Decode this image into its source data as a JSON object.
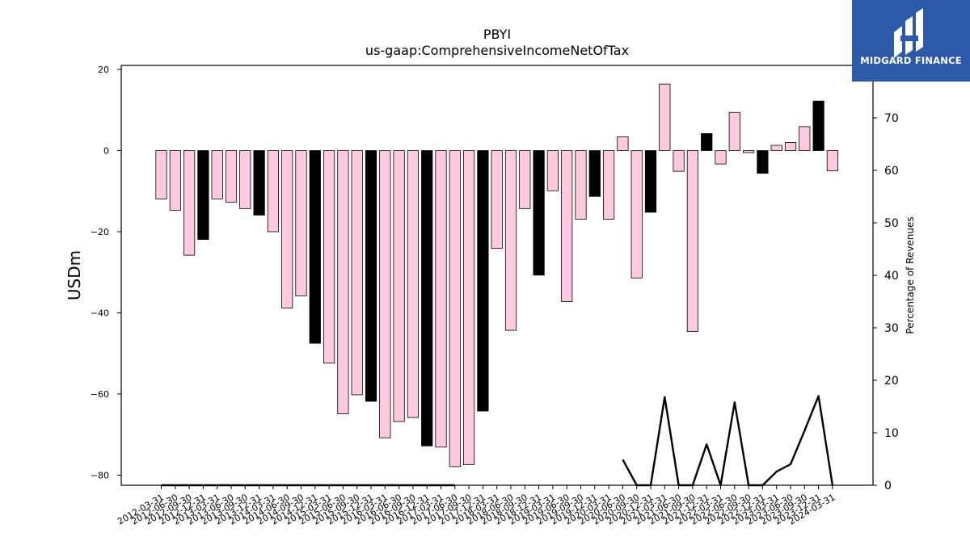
{
  "logo": {
    "text": "MIDGARD FINANCE",
    "background": "#2d5aa8"
  },
  "chart_data": {
    "type": "bar",
    "title": "PBYI",
    "subtitle": "us-gaap:ComprehensiveIncomeNetOfTax",
    "ylabel": "USDm",
    "ylabel_right": "Percentage of Revenues",
    "ylim": [
      -82.5,
      21
    ],
    "ylim_right": [
      0,
      80
    ],
    "yticks": [
      -80,
      -60,
      -40,
      -20,
      0,
      20
    ],
    "yticks_right": [
      0,
      10,
      20,
      30,
      40,
      50,
      60,
      70
    ],
    "grid": false,
    "colors": {
      "positive_quarter": "#ffc9e0",
      "annual": "#000000",
      "edge": "#000000"
    },
    "categories": [
      "2012-03-31",
      "2012-06-30",
      "2012-09-30",
      "2012-12-31",
      "2013-03-31",
      "2013-06-30",
      "2013-09-30",
      "2013-12-31",
      "2014-03-31",
      "2014-06-30",
      "2014-09-30",
      "2014-12-31",
      "2015-03-31",
      "2015-06-30",
      "2015-09-30",
      "2015-12-31",
      "2016-03-31",
      "2016-06-30",
      "2016-09-30",
      "2016-12-31",
      "2017-03-31",
      "2017-06-30",
      "2017-09-30",
      "2017-12-31",
      "2018-03-31",
      "2018-06-30",
      "2018-09-30",
      "2018-12-31",
      "2019-03-31",
      "2019-06-30",
      "2019-09-30",
      "2019-12-31",
      "2020-03-31",
      "2020-06-30",
      "2020-09-30",
      "2020-12-31",
      "2021-03-31",
      "2021-06-30",
      "2021-09-30",
      "2021-12-31",
      "2022-03-31",
      "2022-06-30",
      "2022-09-30",
      "2022-12-31",
      "2023-03-31",
      "2023-06-30",
      "2023-09-30",
      "2023-12-31",
      "2024-03-31"
    ],
    "series": [
      {
        "kind": "bar",
        "values": [
          -11.9,
          -14.7,
          -25.8,
          -21.9,
          -11.9,
          -12.7,
          -14.3,
          -15.9,
          -20.0,
          -38.8,
          -35.8,
          -47.5,
          -52.4,
          -64.9,
          -60.2,
          -61.8,
          -70.8,
          -66.8,
          -65.8,
          -72.8,
          -73.1,
          -77.9,
          -77.4,
          -64.2,
          -24.1,
          -44.3,
          -14.3,
          -30.7,
          -9.9,
          -37.2,
          -16.9,
          -11.3,
          -16.9,
          3.4,
          -31.4,
          -15.2,
          16.4,
          -5.1,
          -44.6,
          4.2,
          -3.3,
          9.4,
          -0.5,
          -5.6,
          1.3,
          2.0,
          5.9,
          12.2,
          -5.0
        ],
        "annual": [
          false,
          false,
          false,
          true,
          false,
          false,
          false,
          true,
          false,
          false,
          false,
          true,
          false,
          false,
          false,
          true,
          false,
          false,
          false,
          true,
          false,
          false,
          false,
          true,
          false,
          false,
          false,
          true,
          false,
          false,
          false,
          true,
          false,
          false,
          false,
          true,
          false,
          false,
          false,
          true,
          false,
          false,
          false,
          true,
          false,
          false,
          false,
          true,
          false
        ]
      },
      {
        "kind": "line",
        "axis": "right",
        "values": [
          0,
          0,
          0,
          0,
          0,
          0,
          0,
          0,
          0,
          0,
          0,
          0,
          0,
          0,
          0,
          0,
          0,
          0,
          0,
          0,
          0,
          0,
          0,
          0,
          0,
          0,
          0,
          0,
          0,
          0,
          0,
          0,
          0,
          4.9,
          0,
          0,
          16.8,
          0,
          0,
          7.8,
          0,
          15.8,
          0,
          0,
          2.6,
          4.0,
          10.4,
          17.0,
          0
        ],
        "present": [
          true,
          true,
          true,
          true,
          true,
          true,
          true,
          true,
          true,
          true,
          true,
          true,
          true,
          true,
          true,
          true,
          true,
          true,
          true,
          true,
          true,
          true,
          false,
          false,
          false,
          false,
          false,
          false,
          false,
          false,
          false,
          false,
          false,
          true,
          true,
          true,
          true,
          true,
          true,
          true,
          true,
          true,
          true,
          true,
          true,
          true,
          true,
          true,
          true
        ]
      }
    ]
  }
}
